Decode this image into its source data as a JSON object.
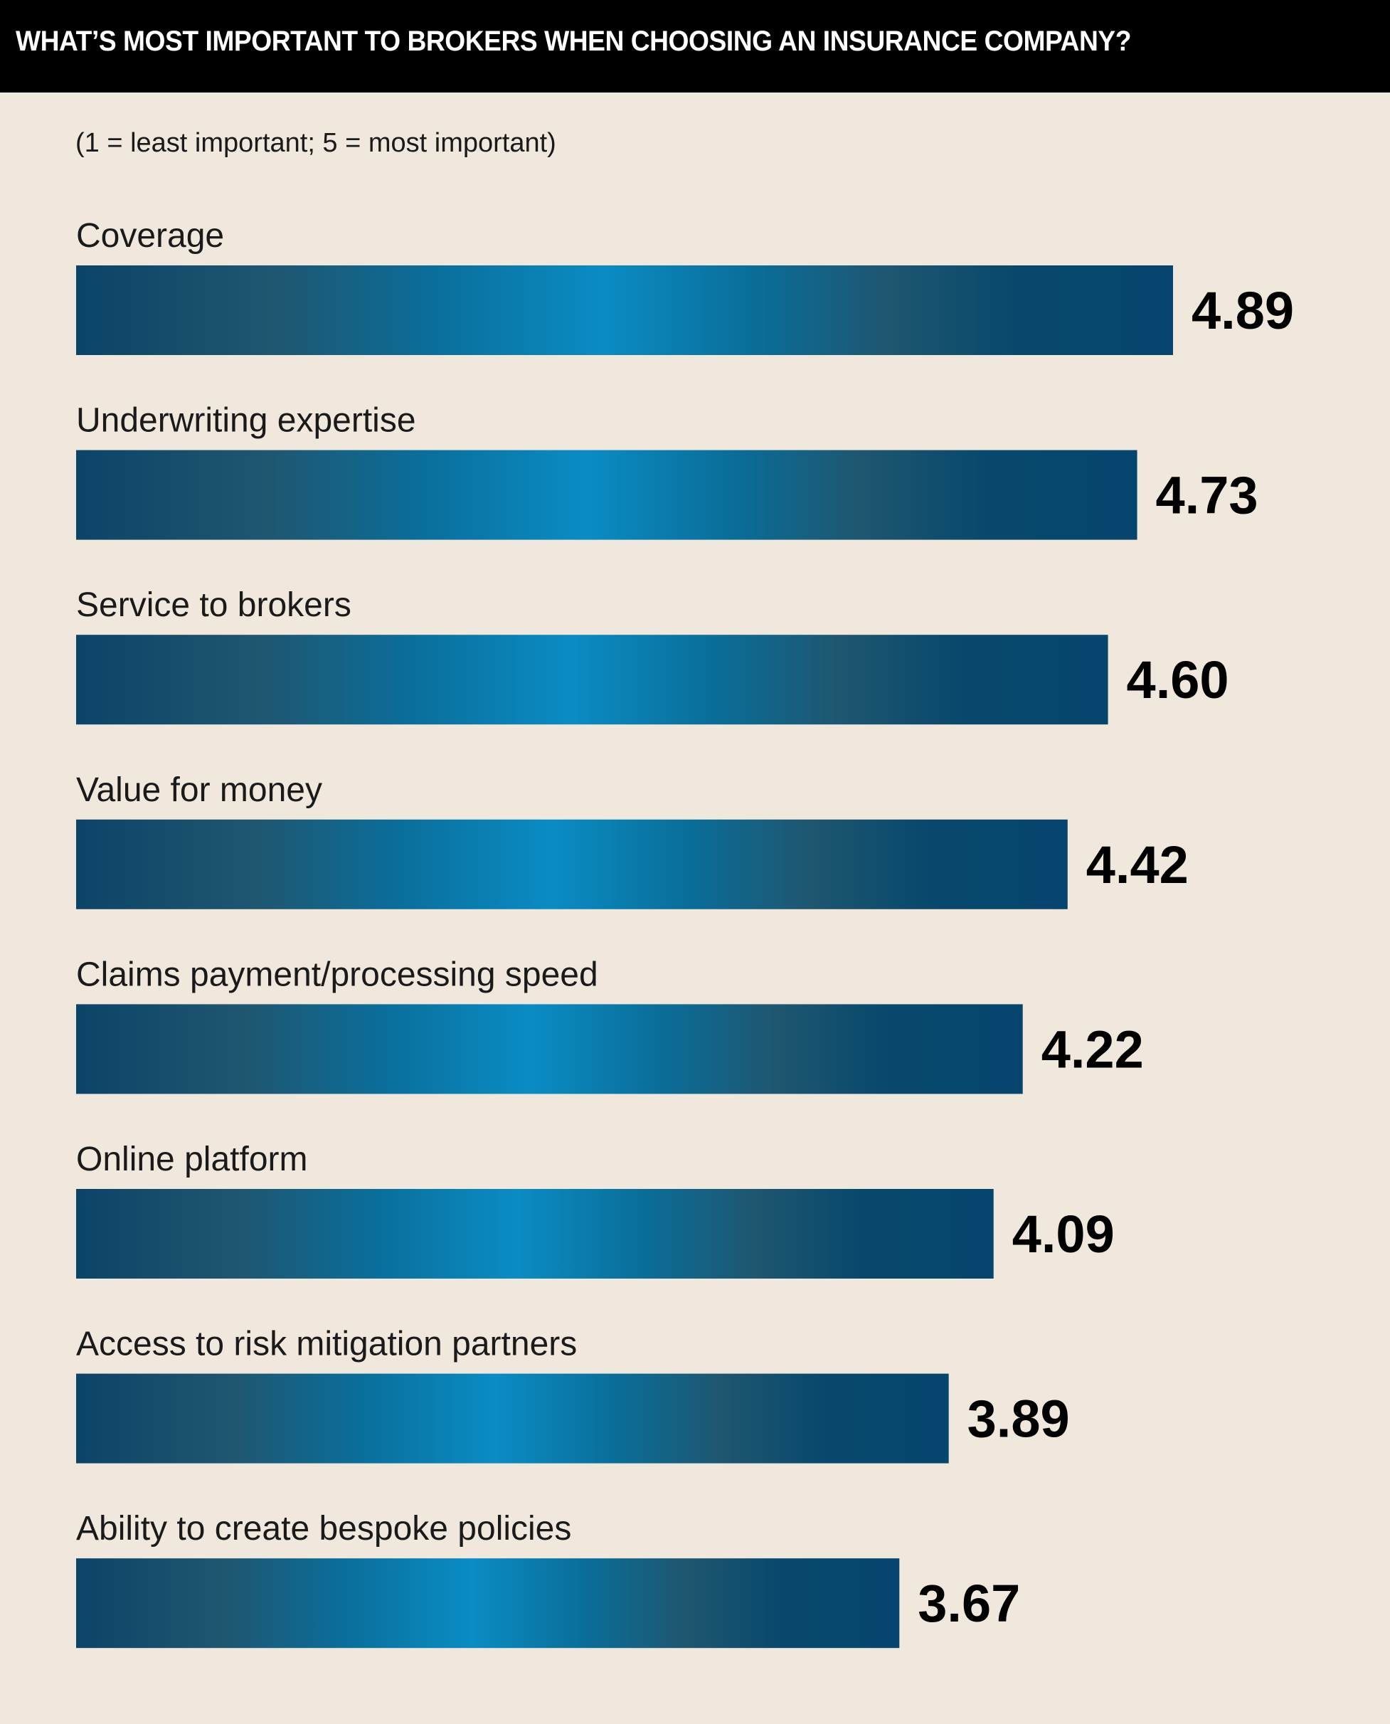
{
  "chart_data": {
    "type": "bar",
    "orientation": "horizontal",
    "title": "WHAT’S MOST IMPORTANT TO BROKERS WHEN CHOOSING AN INSURANCE COMPANY?",
    "subtitle": "(1 = least important; 5 = most important)",
    "categories": [
      "Coverage",
      "Underwriting expertise",
      "Service to brokers",
      "Value for money",
      "Claims payment/processing speed",
      "Online platform",
      "Access to risk mitigation partners",
      "Ability to create bespoke policies"
    ],
    "values": [
      4.89,
      4.73,
      4.6,
      4.42,
      4.22,
      4.09,
      3.89,
      3.67
    ],
    "value_labels": [
      "4.89",
      "4.73",
      "4.60",
      "4.42",
      "4.22",
      "4.09",
      "3.89",
      "3.67"
    ],
    "grid": false,
    "legend": "none"
  },
  "colors": {
    "background": "#f0e8dc",
    "title_bar": "#000000",
    "title_text": "#ffffff",
    "bar_dark": "#0c4468",
    "bar_mid": "#1f5670",
    "bar_light": "#0a8cc4",
    "bar_deep": "#06466e"
  }
}
